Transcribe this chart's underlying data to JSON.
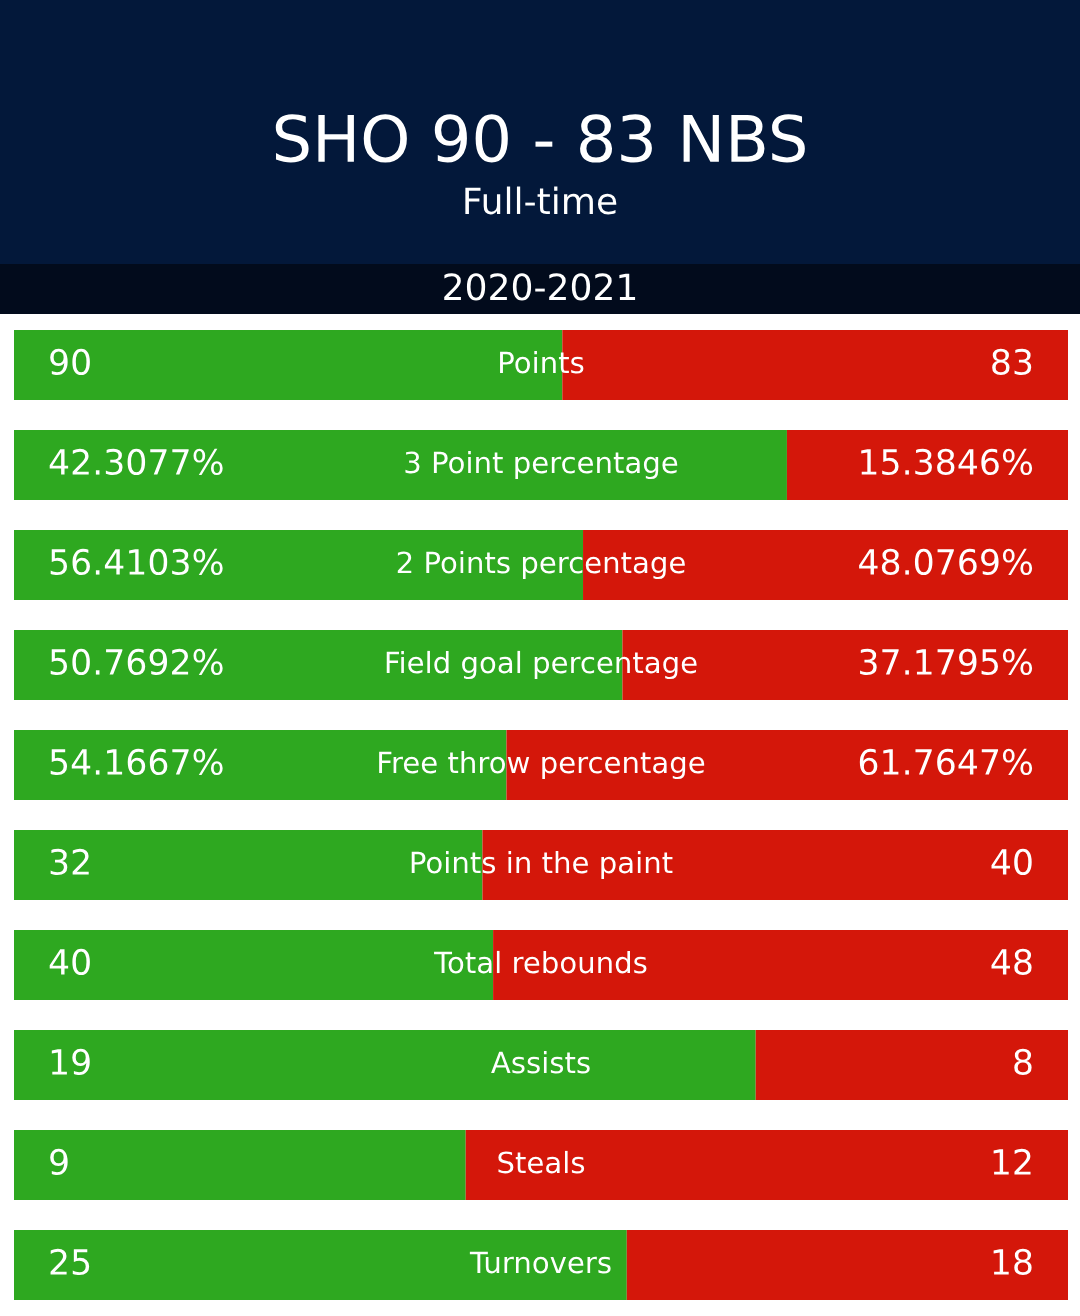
{
  "chart_data": [
    {
      "type": "bar",
      "orientation": "horizontal",
      "stacked": true,
      "title": "SHO 90 - 83 NBS",
      "subtitle": "Full-time",
      "annotations": [
        "2020-2021"
      ],
      "categories": [
        "Points"
      ],
      "xlim": [
        0,
        173
      ],
      "series": [
        {
          "color": "#2ea820",
          "values": [
            90
          ],
          "value_labels": [
            "90"
          ]
        },
        {
          "color": "#d4170a",
          "values": [
            83
          ],
          "value_labels": [
            "83"
          ]
        }
      ]
    },
    {
      "type": "bar",
      "orientation": "horizontal",
      "stacked": true,
      "categories": [
        "3 Point percentage"
      ],
      "xlim": [
        0,
        57.6923
      ],
      "series": [
        {
          "color": "#2ea820",
          "values": [
            42.3077
          ],
          "value_labels": [
            "42.3077%"
          ]
        },
        {
          "color": "#d4170a",
          "values": [
            15.3846
          ],
          "value_labels": [
            "15.3846%"
          ]
        }
      ]
    },
    {
      "type": "bar",
      "orientation": "horizontal",
      "stacked": true,
      "categories": [
        "2 Points percentage"
      ],
      "xlim": [
        0,
        104.4872
      ],
      "series": [
        {
          "color": "#2ea820",
          "values": [
            56.4103
          ],
          "value_labels": [
            "56.4103%"
          ]
        },
        {
          "color": "#d4170a",
          "values": [
            48.0769
          ],
          "value_labels": [
            "48.0769%"
          ]
        }
      ]
    },
    {
      "type": "bar",
      "orientation": "horizontal",
      "stacked": true,
      "categories": [
        "Field goal percentage"
      ],
      "xlim": [
        0,
        87.9487
      ],
      "series": [
        {
          "color": "#2ea820",
          "values": [
            50.7692
          ],
          "value_labels": [
            "50.7692%"
          ]
        },
        {
          "color": "#d4170a",
          "values": [
            37.1795
          ],
          "value_labels": [
            "37.1795%"
          ]
        }
      ]
    },
    {
      "type": "bar",
      "orientation": "horizontal",
      "stacked": true,
      "categories": [
        "Free throw percentage"
      ],
      "xlim": [
        0,
        115.9314
      ],
      "series": [
        {
          "color": "#2ea820",
          "values": [
            54.1667
          ],
          "value_labels": [
            "54.1667%"
          ]
        },
        {
          "color": "#d4170a",
          "values": [
            61.7647
          ],
          "value_labels": [
            "61.7647%"
          ]
        }
      ]
    },
    {
      "type": "bar",
      "orientation": "horizontal",
      "stacked": true,
      "categories": [
        "Points in the paint"
      ],
      "xlim": [
        0,
        72
      ],
      "series": [
        {
          "color": "#2ea820",
          "values": [
            32
          ],
          "value_labels": [
            "32"
          ]
        },
        {
          "color": "#d4170a",
          "values": [
            40
          ],
          "value_labels": [
            "40"
          ]
        }
      ]
    },
    {
      "type": "bar",
      "orientation": "horizontal",
      "stacked": true,
      "categories": [
        "Total rebounds"
      ],
      "xlim": [
        0,
        88
      ],
      "series": [
        {
          "color": "#2ea820",
          "values": [
            40
          ],
          "value_labels": [
            "40"
          ]
        },
        {
          "color": "#d4170a",
          "values": [
            48
          ],
          "value_labels": [
            "48"
          ]
        }
      ]
    },
    {
      "type": "bar",
      "orientation": "horizontal",
      "stacked": true,
      "categories": [
        "Assists"
      ],
      "xlim": [
        0,
        27
      ],
      "series": [
        {
          "color": "#2ea820",
          "values": [
            19
          ],
          "value_labels": [
            "19"
          ]
        },
        {
          "color": "#d4170a",
          "values": [
            8
          ],
          "value_labels": [
            "8"
          ]
        }
      ]
    },
    {
      "type": "bar",
      "orientation": "horizontal",
      "stacked": true,
      "categories": [
        "Steals"
      ],
      "xlim": [
        0,
        21
      ],
      "series": [
        {
          "color": "#2ea820",
          "values": [
            9
          ],
          "value_labels": [
            "9"
          ]
        },
        {
          "color": "#d4170a",
          "values": [
            12
          ],
          "value_labels": [
            "12"
          ]
        }
      ]
    },
    {
      "type": "bar",
      "orientation": "horizontal",
      "stacked": true,
      "categories": [
        "Turnovers"
      ],
      "xlim": [
        0,
        43
      ],
      "series": [
        {
          "color": "#2ea820",
          "values": [
            25
          ],
          "value_labels": [
            "25"
          ]
        },
        {
          "color": "#d4170a",
          "values": [
            18
          ],
          "value_labels": [
            "18"
          ]
        }
      ]
    }
  ]
}
